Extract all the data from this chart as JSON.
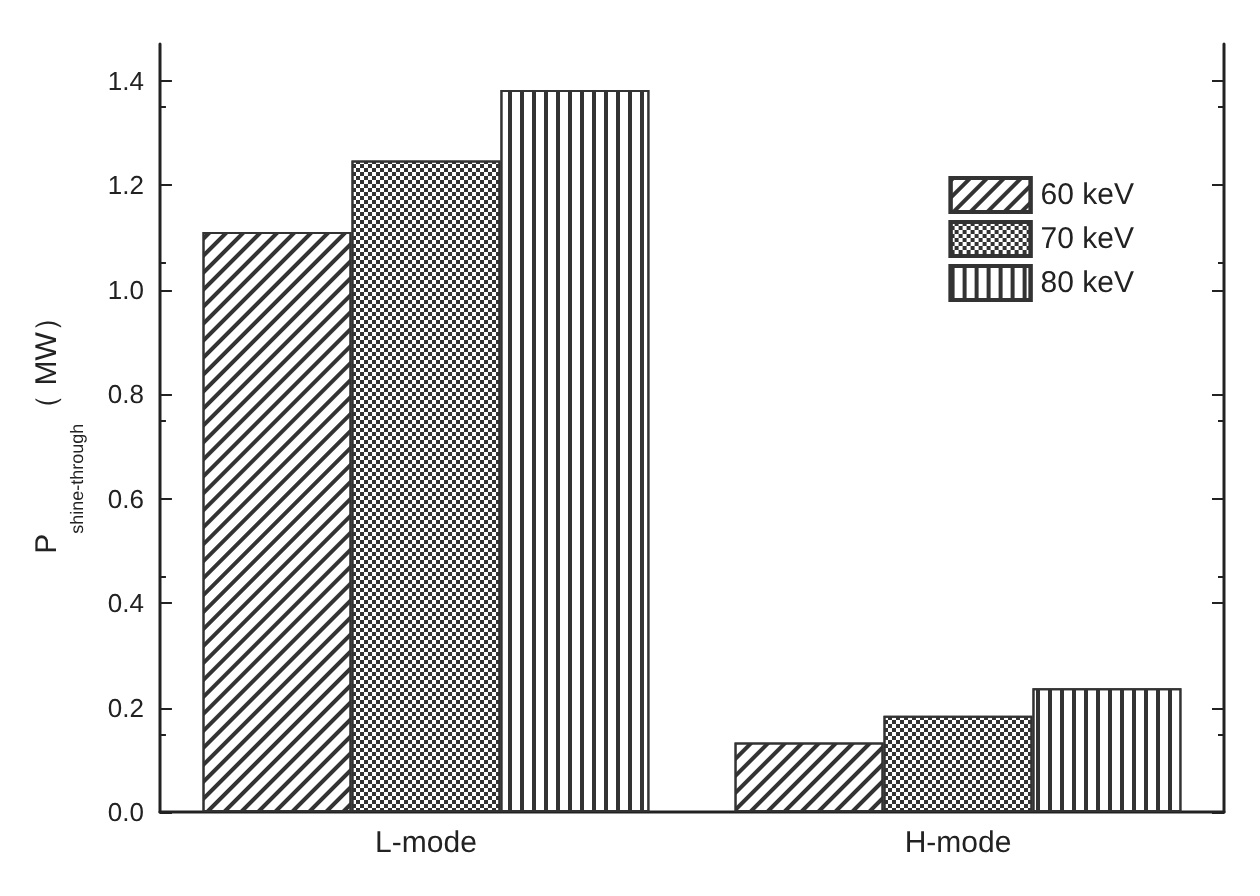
{
  "chart_data": {
    "type": "bar",
    "ylabel": "P$_{shine-through}$（ MW）",
    "categories": [
      "L-mode",
      "H-mode"
    ],
    "series": [
      {
        "name": "60 keV",
        "color": "#333333",
        "values": [
          1.11,
          0.133
        ]
      },
      {
        "name": "70 keV",
        "color": "#333333",
        "values": [
          1.247,
          0.184
        ]
      },
      {
        "name": "80 keV",
        "color": "#333333",
        "values": [
          1.382,
          0.237
        ]
      }
    ],
    "ylim": [
      0,
      1.47
    ],
    "yticks": [
      {
        "value": 0,
        "label": "0.0"
      },
      0.2,
      0.4,
      0.6,
      0.8,
      {
        "value": 1,
        "label": "1.0"
      },
      1.2,
      1.4
    ],
    "grid": false,
    "legend": "top right"
  }
}
